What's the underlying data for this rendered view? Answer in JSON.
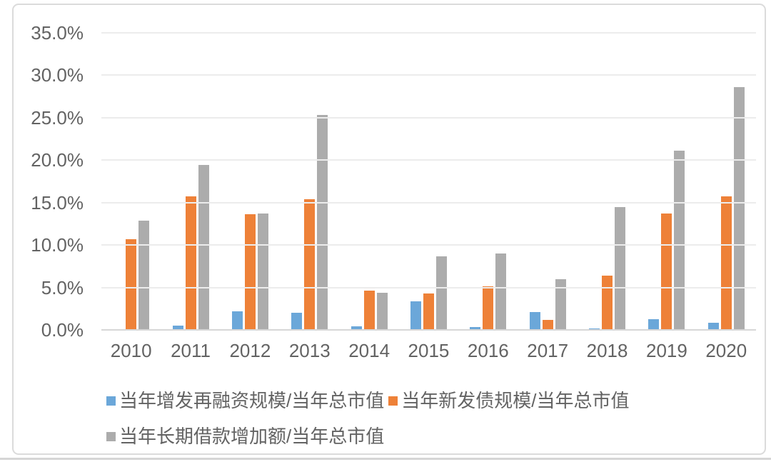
{
  "chart_data": {
    "type": "bar",
    "title": "",
    "unit": "%",
    "categories": [
      "2010",
      "2011",
      "2012",
      "2013",
      "2014",
      "2015",
      "2016",
      "2017",
      "2018",
      "2019",
      "2020"
    ],
    "series": [
      {
        "name": "当年增发再融资规模/当年总市值",
        "color": "#6BA7D9",
        "values": [
          0.0,
          0.5,
          2.2,
          2.0,
          0.4,
          3.4,
          0.3,
          2.1,
          0.2,
          1.3,
          0.8
        ]
      },
      {
        "name": "当年新发债规模/当年总市值",
        "color": "#EE8138",
        "values": [
          10.7,
          15.7,
          13.6,
          15.4,
          4.6,
          4.3,
          5.1,
          1.2,
          6.4,
          13.7,
          15.7
        ]
      },
      {
        "name": "当年长期借款增加额/当年总市值",
        "color": "#ACACAC",
        "values": [
          12.9,
          19.4,
          13.7,
          25.3,
          4.4,
          8.7,
          9.0,
          6.0,
          14.5,
          21.1,
          28.6
        ]
      }
    ],
    "ylim": [
      0,
      35
    ],
    "ytick_step": 5,
    "ytick_labels": [
      "35.0%",
      "30.0%",
      "25.0%",
      "20.0%",
      "15.0%",
      "10.0%",
      "5.0%",
      "0.0%"
    ],
    "xlabel": "",
    "ylabel": "",
    "grid": true,
    "legend_position": "bottom",
    "legend_rows": [
      [
        0,
        1
      ],
      [
        2
      ]
    ]
  },
  "style": {
    "plot_background": "#ffffff",
    "gridline_color": "#ececec",
    "baseline_color": "#d7d7d7",
    "text_color": "#636363",
    "card_border_color": "#dbdbdb"
  }
}
